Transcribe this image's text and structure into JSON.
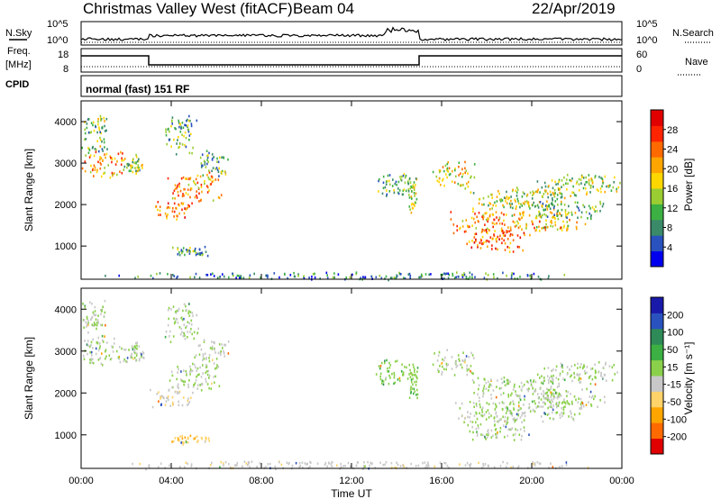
{
  "header": {
    "title": "Christmas Valley West (fitACF)",
    "beam": "Beam 04",
    "date": "22/Apr/2019"
  },
  "noise_panel": {
    "left_label": "N.Sky",
    "right_label": "N.Search",
    "left_ticks": [
      "10^5",
      "10^0"
    ],
    "right_ticks": [
      "10^5",
      "10^0"
    ]
  },
  "freq_panel": {
    "left_label_1": "Freq.",
    "left_label_2": "[MHz]",
    "right_label": "Nave",
    "left_ticks": [
      "18",
      "8"
    ],
    "right_ticks": [
      "60",
      "0"
    ],
    "freq_steps": [
      {
        "from_hour": 0,
        "to_hour": 3.0,
        "mhz": 15.5
      },
      {
        "from_hour": 3.0,
        "to_hour": 15.0,
        "mhz": 10.5
      },
      {
        "from_hour": 15.0,
        "to_hour": 24,
        "mhz": 15.5
      }
    ]
  },
  "cpid": {
    "label": "CPID",
    "mode": "normal (fast) 151 RF"
  },
  "chart_data": [
    {
      "type": "heatmap",
      "name": "power",
      "xlabel": "Time UT",
      "ylabel": "Slant Range [km]",
      "x_ticks": [
        "00:00",
        "04:00",
        "08:00",
        "12:00",
        "16:00",
        "20:00",
        "00:00"
      ],
      "xlim_hours": [
        0,
        24
      ],
      "ylim": [
        200,
        4500
      ],
      "y_ticks": [
        1000,
        2000,
        3000,
        4000
      ],
      "colorbar_label": "Power [dB]",
      "colorbar_ticks": [
        "28",
        "24",
        "20",
        "16",
        "12",
        "8",
        "4"
      ],
      "colorbar_range": [
        0,
        30
      ],
      "colors": [
        "#0000ee",
        "#2a52be",
        "#3a8a6a",
        "#3cb043",
        "#9acd32",
        "#ffd700",
        "#ffa500",
        "#ff6a00",
        "#ff2400",
        "#e00000"
      ],
      "regions": [
        {
          "t": 1.0,
          "r": 3000,
          "dt": 1.0,
          "dr": 350,
          "power": 20
        },
        {
          "t": 0.6,
          "r": 3700,
          "dt": 0.6,
          "dr": 600,
          "power": 12
        },
        {
          "t": 2.3,
          "r": 3000,
          "dt": 0.5,
          "dr": 250,
          "power": 12
        },
        {
          "t": 4.0,
          "r": 1900,
          "dt": 1.0,
          "dr": 250,
          "power": 22
        },
        {
          "t": 5.0,
          "r": 2450,
          "dt": 1.2,
          "dr": 400,
          "power": 20
        },
        {
          "t": 5.8,
          "r": 3000,
          "dt": 0.8,
          "dr": 350,
          "power": 10
        },
        {
          "t": 4.4,
          "r": 3700,
          "dt": 0.8,
          "dr": 500,
          "power": 10
        },
        {
          "t": 4.8,
          "r": 900,
          "dt": 0.9,
          "dr": 120,
          "power": 10
        },
        {
          "t": 13.8,
          "r": 2500,
          "dt": 0.8,
          "dr": 350,
          "power": 10
        },
        {
          "t": 14.7,
          "r": 2300,
          "dt": 0.25,
          "dr": 500,
          "power": 14
        },
        {
          "t": 16.5,
          "r": 2750,
          "dt": 1.0,
          "dr": 350,
          "power": 16
        },
        {
          "t": 19.5,
          "r": 2150,
          "dt": 2.5,
          "dr": 300,
          "power": 14
        },
        {
          "t": 22.0,
          "r": 2500,
          "dt": 2.0,
          "dr": 300,
          "power": 14
        },
        {
          "t": 17.8,
          "r": 1600,
          "dt": 1.5,
          "dr": 300,
          "power": 20
        },
        {
          "t": 18.5,
          "r": 1150,
          "dt": 1.5,
          "dr": 300,
          "power": 24
        },
        {
          "t": 20.5,
          "r": 1600,
          "dt": 2.0,
          "dr": 300,
          "power": 18
        },
        {
          "t": 21.5,
          "r": 1900,
          "dt": 1.8,
          "dr": 250,
          "power": 10
        },
        {
          "t": 12.0,
          "r": 300,
          "dt": 11.0,
          "dr": 100,
          "power": 8
        }
      ]
    },
    {
      "type": "heatmap",
      "name": "velocity",
      "xlabel": "Time UT",
      "ylabel": "Slant Range [km]",
      "x_ticks": [
        "00:00",
        "04:00",
        "08:00",
        "12:00",
        "16:00",
        "20:00",
        "00:00"
      ],
      "xlim_hours": [
        0,
        24
      ],
      "ylim": [
        200,
        4500
      ],
      "y_ticks": [
        1000,
        2000,
        3000,
        4000
      ],
      "colorbar_label": "Velocity [m s⁻¹]",
      "colorbar_ticks": [
        "200",
        "100",
        "50",
        "15",
        "-15",
        "-50",
        "-100",
        "-200"
      ],
      "colorbar_range": [
        -250,
        250
      ],
      "colors": [
        "#e00000",
        "#ff6a00",
        "#ffa500",
        "#ffd26a",
        "#c8c8c8",
        "#8ad04a",
        "#3cb043",
        "#2e8b57",
        "#2a52be",
        "#1a1aaa"
      ],
      "regions": [
        {
          "t": 1.0,
          "r": 3000,
          "dt": 1.0,
          "dr": 350,
          "vel": 0
        },
        {
          "t": 0.6,
          "r": 3700,
          "dt": 0.6,
          "dr": 600,
          "vel": 0
        },
        {
          "t": 2.3,
          "r": 3000,
          "dt": 0.5,
          "dr": 250,
          "vel": 0
        },
        {
          "t": 4.0,
          "r": 1900,
          "dt": 1.0,
          "dr": 250,
          "vel": -40
        },
        {
          "t": 5.0,
          "r": 2450,
          "dt": 1.2,
          "dr": 400,
          "vel": 0
        },
        {
          "t": 5.8,
          "r": 3000,
          "dt": 0.8,
          "dr": 350,
          "vel": 0
        },
        {
          "t": 4.4,
          "r": 3700,
          "dt": 0.8,
          "dr": 500,
          "vel": 0
        },
        {
          "t": 4.8,
          "r": 900,
          "dt": 0.9,
          "dr": 120,
          "vel": -80
        },
        {
          "t": 13.8,
          "r": 2500,
          "dt": 0.8,
          "dr": 350,
          "vel": 30
        },
        {
          "t": 14.7,
          "r": 2300,
          "dt": 0.25,
          "dr": 500,
          "vel": 30
        },
        {
          "t": 16.5,
          "r": 2750,
          "dt": 1.0,
          "dr": 350,
          "vel": 0
        },
        {
          "t": 19.5,
          "r": 2150,
          "dt": 2.5,
          "dr": 300,
          "vel": 0
        },
        {
          "t": 22.0,
          "r": 2500,
          "dt": 2.0,
          "dr": 300,
          "vel": 0
        },
        {
          "t": 17.8,
          "r": 1600,
          "dt": 1.5,
          "dr": 300,
          "vel": 0
        },
        {
          "t": 18.5,
          "r": 1150,
          "dt": 1.5,
          "dr": 300,
          "vel": 0
        },
        {
          "t": 20.5,
          "r": 1600,
          "dt": 2.0,
          "dr": 300,
          "vel": 0
        },
        {
          "t": 21.5,
          "r": 1900,
          "dt": 1.8,
          "dr": 250,
          "vel": 0
        },
        {
          "t": 12.0,
          "r": 300,
          "dt": 11.0,
          "dr": 100,
          "vel": -30
        }
      ]
    }
  ]
}
